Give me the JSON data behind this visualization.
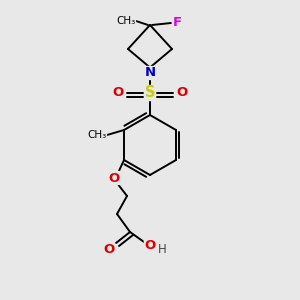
{
  "background_color": "#e8e8e8",
  "figsize": [
    3.0,
    3.0
  ],
  "dpi": 100,
  "atom_colors": {
    "C": "#000000",
    "N": "#0000cc",
    "O": "#dd0000",
    "S": "#cccc00",
    "F": "#dd00dd",
    "H": "#444444"
  },
  "bond_color": "#000000",
  "bond_width": 1.4,
  "font_size_atoms": 8.5
}
